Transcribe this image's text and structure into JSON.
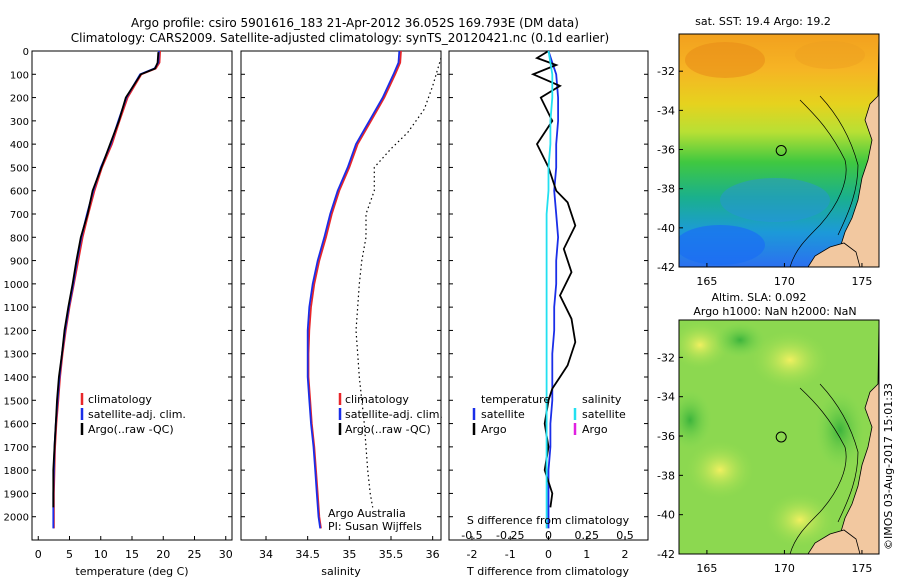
{
  "title": {
    "line1": "Argo profile: csiro 5901616_183 21-Apr-2012 36.052S 169.793E (DM data)",
    "line2": "Climatology: CARS2009. Satellite-adjusted climatology: synTS_20120421.nc (0.1d earlier)"
  },
  "colors": {
    "climatology": "#e8262a",
    "satellite": "#1a2ee8",
    "argo": "#000000",
    "sal_satellite": "#22e0f0",
    "sal_argo": "#e020e0"
  },
  "chart_data": [
    {
      "type": "line",
      "panel": "temperature",
      "xlabel": "temperature (deg C)",
      "xlim": [
        -1,
        31
      ],
      "xticks": [
        "0",
        "5",
        "10",
        "15",
        "20",
        "25",
        "30"
      ],
      "ylim": [
        0,
        2100
      ],
      "yticks": [
        "0",
        "100",
        "200",
        "300",
        "400",
        "500",
        "600",
        "700",
        "800",
        "900",
        "1000",
        "1100",
        "1200",
        "1300",
        "1400",
        "1500",
        "1600",
        "1700",
        "1800",
        "1900",
        "2000"
      ],
      "legend": [
        "climatology",
        "satellite-adj. clim.",
        "Argo(..raw -QC)"
      ],
      "legend_position": "lower-center",
      "series": [
        {
          "name": "climatology",
          "x": [
            19.5,
            19.4,
            18.8,
            16.5,
            14.3,
            13.0,
            11.8,
            10.2,
            9.0,
            8.0,
            7.1,
            6.4,
            5.7,
            5.0,
            4.4,
            3.9,
            3.5,
            3.2,
            2.9,
            2.7,
            2.6,
            2.5,
            2.5
          ],
          "y": [
            0,
            50,
            75,
            100,
            200,
            300,
            400,
            500,
            600,
            700,
            800,
            900,
            1000,
            1100,
            1200,
            1300,
            1400,
            1500,
            1600,
            1700,
            1800,
            1900,
            2050
          ]
        },
        {
          "name": "satellite-adj. clim.",
          "x": [
            19.3,
            19.2,
            18.6,
            16.3,
            14.1,
            12.8,
            11.6,
            10.0,
            8.8,
            7.8,
            6.9,
            6.2,
            5.6,
            4.9,
            4.3,
            3.8,
            3.4,
            3.1,
            2.8,
            2.6,
            2.5,
            2.4,
            2.4
          ],
          "y": [
            0,
            50,
            75,
            100,
            200,
            300,
            400,
            500,
            600,
            700,
            800,
            900,
            1000,
            1100,
            1200,
            1300,
            1400,
            1500,
            1600,
            1700,
            1800,
            1900,
            2050
          ]
        },
        {
          "name": "Argo(..raw -QC)",
          "x": [
            19.2,
            19.1,
            18.7,
            16.4,
            14.0,
            12.9,
            11.5,
            10.1,
            8.7,
            7.9,
            6.8,
            6.1,
            5.5,
            4.8,
            4.2,
            3.8,
            3.3,
            3.0,
            2.8,
            2.6,
            2.4,
            2.4
          ],
          "y": [
            5,
            50,
            75,
            100,
            200,
            300,
            400,
            500,
            600,
            700,
            800,
            900,
            1000,
            1100,
            1200,
            1300,
            1400,
            1500,
            1600,
            1700,
            1800,
            1960
          ]
        }
      ]
    },
    {
      "type": "line",
      "panel": "salinity",
      "xlabel": "salinity",
      "xlim": [
        33.7,
        36.1
      ],
      "xticks": [
        "34",
        "34.5",
        "35",
        "35.5",
        "36"
      ],
      "ylim": [
        0,
        2100
      ],
      "legend": [
        "climatology",
        "satellite-adj. clim.",
        "Argo(..raw -QC)"
      ],
      "legend_position": "lower-right",
      "annotations": [
        "Argo Australia",
        "PI: Susan Wijffels"
      ],
      "series": [
        {
          "name": "climatology",
          "x": [
            35.62,
            35.61,
            35.55,
            35.42,
            35.26,
            35.1,
            35.0,
            34.88,
            34.79,
            34.72,
            34.64,
            34.58,
            34.54,
            34.52,
            34.51,
            34.51,
            34.53,
            34.55,
            34.58,
            34.6,
            34.62,
            34.64,
            34.66
          ],
          "y": [
            0,
            50,
            100,
            200,
            300,
            400,
            500,
            600,
            700,
            800,
            900,
            1000,
            1100,
            1200,
            1300,
            1400,
            1500,
            1600,
            1700,
            1800,
            1900,
            2000,
            2050
          ]
        },
        {
          "name": "satellite-adj. clim.",
          "x": [
            35.6,
            35.59,
            35.53,
            35.4,
            35.24,
            35.08,
            34.98,
            34.86,
            34.77,
            34.7,
            34.62,
            34.56,
            34.52,
            34.5,
            34.5,
            34.5,
            34.52,
            34.54,
            34.57,
            34.59,
            34.61,
            34.63,
            34.65
          ],
          "y": [
            0,
            50,
            100,
            200,
            300,
            400,
            500,
            600,
            700,
            800,
            900,
            1000,
            1100,
            1200,
            1300,
            1400,
            1500,
            1600,
            1700,
            1800,
            1900,
            2000,
            2050
          ]
        },
        {
          "name": "Argo(..raw -QC)",
          "x": [
            36.1,
            36.0,
            35.9,
            35.8,
            35.7,
            35.5,
            35.3,
            35.3,
            35.2,
            35.2,
            35.15,
            35.12,
            35.1,
            35.08,
            35.1,
            35.12,
            35.15,
            35.18,
            35.2,
            35.22,
            35.25,
            35.28
          ],
          "y": [
            30,
            150,
            250,
            300,
            350,
            420,
            500,
            600,
            700,
            800,
            900,
            1000,
            1100,
            1200,
            1300,
            1400,
            1500,
            1600,
            1700,
            1800,
            1900,
            1960
          ]
        }
      ]
    },
    {
      "type": "line",
      "panel": "difference",
      "xlabel": "T difference from climatology",
      "xlabel_top": "S difference from climatology",
      "xlim": [
        -2.6,
        2.6
      ],
      "xticks": [
        "-2",
        "-1",
        "0",
        "1",
        "2"
      ],
      "xticks_top": [
        "-0.5",
        "-0.25",
        "0",
        "0.25",
        "0.5"
      ],
      "ylim": [
        0,
        2100
      ],
      "legend_left_title": "temperature",
      "legend_right_title": "salinity",
      "legend_left": [
        "satellite",
        "Argo"
      ],
      "legend_right": [
        "satellite",
        "Argo"
      ],
      "series": [
        {
          "name": "temperature satellite",
          "x": [
            0.0,
            0.1,
            0.2,
            0.25,
            0.25,
            0.2,
            0.2,
            0.15,
            0.2,
            0.25,
            0.2,
            0.2,
            0.15,
            0.15,
            0.1,
            0.1,
            0.1,
            0.05,
            0.05,
            0.0,
            0.0
          ],
          "y": [
            0,
            50,
            100,
            200,
            300,
            400,
            500,
            600,
            700,
            800,
            900,
            1000,
            1100,
            1200,
            1300,
            1400,
            1500,
            1600,
            1700,
            1800,
            2050
          ]
        },
        {
          "name": "temperature Argo",
          "x": [
            0.0,
            -0.3,
            0.2,
            -0.4,
            0.3,
            -0.2,
            0.1,
            -0.3,
            0.0,
            0.2,
            0.5,
            0.7,
            0.4,
            0.6,
            0.3,
            0.6,
            0.7,
            0.5,
            0.3,
            0.1,
            0.0,
            -0.1,
            0.0,
            -0.1,
            0.1,
            0.05
          ],
          "y": [
            0,
            30,
            60,
            100,
            150,
            200,
            300,
            400,
            500,
            600,
            650,
            750,
            850,
            950,
            1050,
            1150,
            1250,
            1350,
            1400,
            1450,
            1500,
            1600,
            1700,
            1800,
            1900,
            1960
          ]
        },
        {
          "name": "salinity satellite",
          "x": [
            0.0,
            0.05,
            0.1,
            0.1,
            0.05,
            0.05,
            0.0,
            0.0,
            -0.05,
            -0.05,
            -0.05,
            -0.05,
            -0.05,
            -0.05,
            -0.05,
            -0.05,
            -0.05,
            -0.05,
            -0.05,
            -0.05,
            -0.05
          ],
          "y": [
            0,
            50,
            100,
            200,
            300,
            400,
            500,
            600,
            700,
            800,
            900,
            1000,
            1100,
            1200,
            1300,
            1400,
            1500,
            1600,
            1700,
            1800,
            2050
          ]
        }
      ]
    }
  ],
  "maps": [
    {
      "title_lines": [
        "sat. SST: 19.4 Argo: 19.2"
      ],
      "xticks": [
        "165",
        "170",
        "175"
      ],
      "yticks": [
        "-32",
        "-34",
        "-36",
        "-38",
        "-40",
        "-42"
      ],
      "marker": {
        "lon": 169.793,
        "lat": -36.052
      }
    },
    {
      "title_lines": [
        "Altim. SLA: 0.092",
        "Argo h1000: NaN h2000: NaN"
      ],
      "xticks": [
        "165",
        "170",
        "175"
      ],
      "yticks": [
        "-32",
        "-34",
        "-36",
        "-38",
        "-40",
        "-42"
      ],
      "marker": {
        "lon": 169.793,
        "lat": -36.052
      }
    }
  ],
  "footer_stamp": "©IMOS 03-Aug-2017 15:01:33"
}
